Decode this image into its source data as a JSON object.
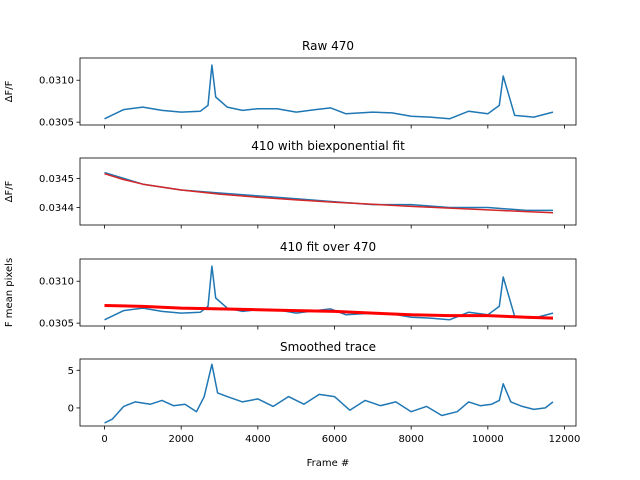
{
  "chart_data": [
    {
      "type": "line",
      "title": "Raw 470",
      "ylabel": "ΔF/F",
      "xlabel": "",
      "xlim": [
        -640,
        12300
      ],
      "ylim": [
        0.030466,
        0.031265
      ],
      "yticks": [
        "0.0305",
        "0.0310"
      ],
      "ytick_values": [
        0.0305,
        0.031
      ],
      "xticks": [
        0,
        2000,
        4000,
        6000,
        8000,
        10000,
        12000
      ],
      "show_xticklabels": false,
      "series": [
        {
          "color": "#1f77b4",
          "x": [
            0,
            500,
            1000,
            1500,
            2000,
            2500,
            2700,
            2800,
            2900,
            3200,
            3600,
            4000,
            4500,
            5000,
            5500,
            5900,
            6300,
            7000,
            7500,
            8000,
            8500,
            9000,
            9500,
            10000,
            10300,
            10400,
            10700,
            11200,
            11700
          ],
          "y": [
            0.03054,
            0.03065,
            0.03068,
            0.03064,
            0.03062,
            0.03063,
            0.0307,
            0.03118,
            0.0308,
            0.03068,
            0.03064,
            0.03066,
            0.03066,
            0.03062,
            0.03065,
            0.03067,
            0.0306,
            0.03062,
            0.03061,
            0.03057,
            0.03056,
            0.03054,
            0.03063,
            0.0306,
            0.0307,
            0.03105,
            0.03058,
            0.03056,
            0.03062
          ]
        }
      ]
    },
    {
      "type": "line",
      "title": "410 with biexponential fit",
      "ylabel": "ΔF/F",
      "xlabel": "",
      "xlim": [
        -640,
        12300
      ],
      "ylim": [
        0.03434,
        0.03457
      ],
      "yticks": [
        "0.0344",
        "0.0345"
      ],
      "ytick_values": [
        0.0344,
        0.0345
      ],
      "xticks": [
        0,
        2000,
        4000,
        6000,
        8000,
        10000,
        12000
      ],
      "show_xticklabels": false,
      "series": [
        {
          "color": "#1f77b4",
          "x": [
            0,
            500,
            1000,
            1500,
            2000,
            3000,
            4000,
            5000,
            6000,
            7000,
            8000,
            9000,
            10000,
            11000,
            11700
          ],
          "y": [
            0.03452,
            0.0345,
            0.03448,
            0.03447,
            0.03446,
            0.03445,
            0.03444,
            0.03443,
            0.03442,
            0.03441,
            0.03441,
            0.0344,
            0.0344,
            0.03439,
            0.03439
          ]
        },
        {
          "color": "#d62728",
          "x": [
            0,
            500,
            1000,
            2000,
            3000,
            4000,
            5000,
            6000,
            7000,
            8000,
            9000,
            10000,
            11000,
            11700
          ],
          "y": [
            0.034516,
            0.034496,
            0.03448,
            0.03446,
            0.034446,
            0.034435,
            0.034426,
            0.034418,
            0.034411,
            0.034404,
            0.034398,
            0.034392,
            0.034386,
            0.034382
          ]
        }
      ]
    },
    {
      "type": "line",
      "title": "410 fit over 470",
      "ylabel": "F mean pixels",
      "xlabel": "",
      "xlim": [
        -640,
        12300
      ],
      "ylim": [
        0.030466,
        0.031265
      ],
      "yticks": [
        "0.0305",
        "0.0310"
      ],
      "ytick_values": [
        0.0305,
        0.031
      ],
      "xticks": [
        0,
        2000,
        4000,
        6000,
        8000,
        10000,
        12000
      ],
      "show_xticklabels": false,
      "series": [
        {
          "color": "#1f77b4",
          "x": [
            0,
            500,
            1000,
            1500,
            2000,
            2500,
            2700,
            2800,
            2900,
            3200,
            3600,
            4000,
            4500,
            5000,
            5500,
            5900,
            6300,
            7000,
            7500,
            8000,
            8500,
            9000,
            9500,
            10000,
            10300,
            10400,
            10700,
            11200,
            11700
          ],
          "y": [
            0.03054,
            0.03065,
            0.03068,
            0.03064,
            0.03062,
            0.03063,
            0.0307,
            0.03118,
            0.0308,
            0.03068,
            0.03064,
            0.03066,
            0.03066,
            0.03062,
            0.03065,
            0.03067,
            0.0306,
            0.03062,
            0.03061,
            0.03057,
            0.03056,
            0.03054,
            0.03063,
            0.0306,
            0.0307,
            0.03105,
            0.03058,
            0.03056,
            0.03062
          ]
        },
        {
          "color": "#ff0000",
          "x": [
            0,
            1000,
            2000,
            3000,
            4000,
            5000,
            6000,
            7000,
            8000,
            9000,
            10000,
            11000,
            11700
          ],
          "y": [
            0.03071,
            0.0307,
            0.03068,
            0.03067,
            0.03066,
            0.03065,
            0.03064,
            0.03062,
            0.0306,
            0.03059,
            0.03059,
            0.03057,
            0.03056
          ]
        }
      ]
    },
    {
      "type": "line",
      "title": "Smoothed trace",
      "ylabel": "",
      "xlabel": "Frame #",
      "xlim": [
        -640,
        12300
      ],
      "ylim": [
        -2.4,
        6.5
      ],
      "yticks": [
        "0",
        "5"
      ],
      "ytick_values": [
        0,
        5
      ],
      "xticks": [
        0,
        2000,
        4000,
        6000,
        8000,
        10000,
        12000
      ],
      "show_xticklabels": true,
      "series": [
        {
          "color": "#1f77b4",
          "x": [
            0,
            200,
            500,
            800,
            1200,
            1500,
            1800,
            2100,
            2400,
            2600,
            2800,
            2950,
            3200,
            3600,
            4000,
            4400,
            4800,
            5200,
            5600,
            6000,
            6400,
            6800,
            7200,
            7600,
            8000,
            8400,
            8800,
            9200,
            9500,
            9800,
            10100,
            10300,
            10400,
            10600,
            10900,
            11200,
            11500,
            11700
          ],
          "y": [
            -2.0,
            -1.5,
            0.2,
            0.8,
            0.5,
            1.0,
            0.3,
            0.5,
            -0.5,
            1.5,
            5.8,
            2.0,
            1.5,
            0.8,
            1.2,
            0.2,
            1.5,
            0.5,
            1.8,
            1.5,
            -0.3,
            1.0,
            0.3,
            0.8,
            -0.5,
            0.2,
            -1.0,
            -0.5,
            0.8,
            0.3,
            0.5,
            1.0,
            3.2,
            0.8,
            0.2,
            -0.2,
            0.0,
            0.8
          ]
        }
      ]
    }
  ]
}
